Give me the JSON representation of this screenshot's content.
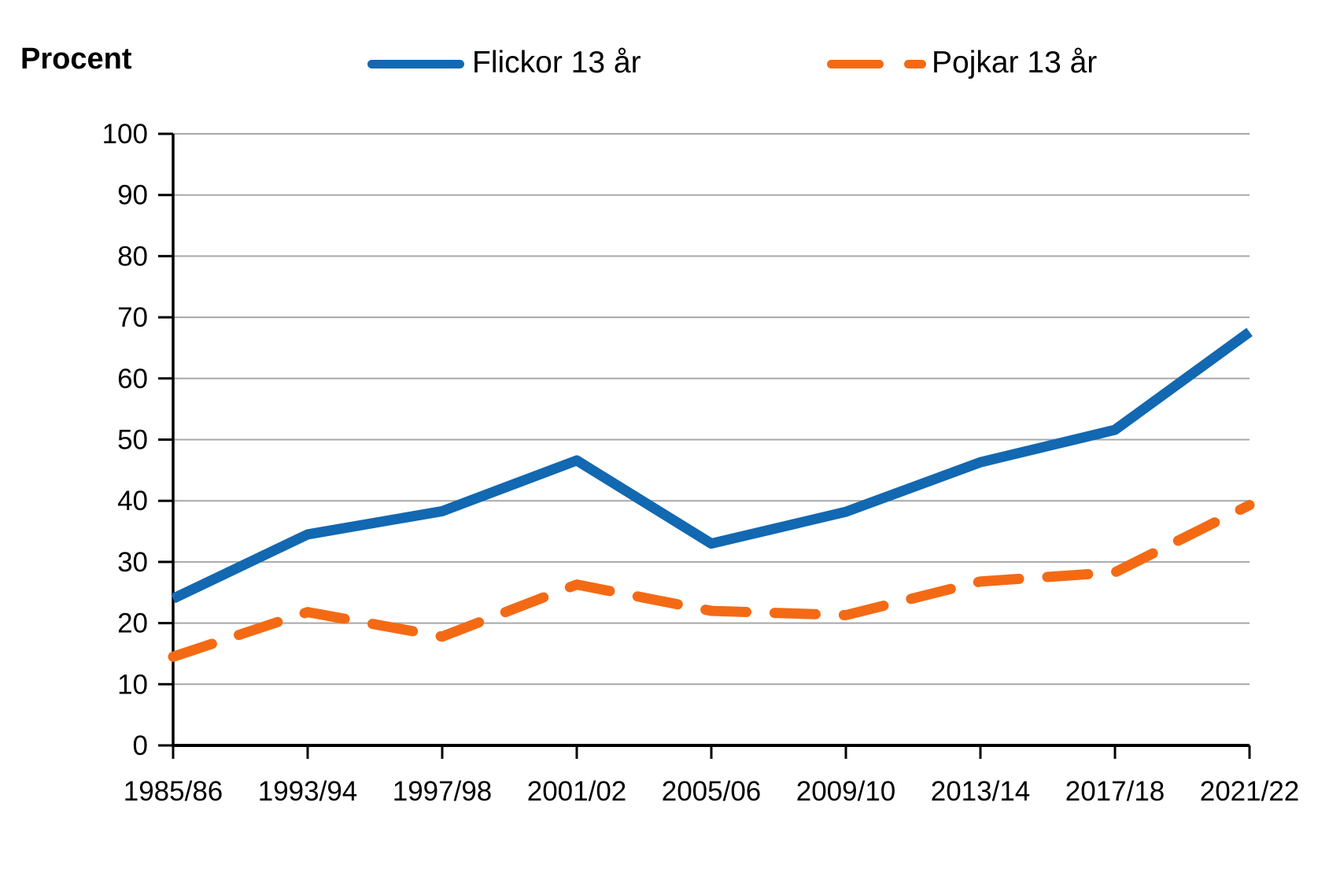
{
  "header": {
    "y_axis_title": "Procent"
  },
  "legend": {
    "items": [
      {
        "label": "Flickor 13 år",
        "color": "#1268b1",
        "style": "solid"
      },
      {
        "label": "Pojkar 13 år",
        "color": "#f46a14",
        "style": "dashed"
      }
    ]
  },
  "colors": {
    "series_girls": "#1268b1",
    "series_boys": "#f46a14",
    "gridline": "#a8a8a8",
    "axis": "#000000",
    "text": "#000000",
    "background": "#ffffff"
  },
  "chart_data": {
    "type": "line",
    "title": "Procent",
    "categories": [
      "1985/86",
      "1993/94",
      "1997/98",
      "2001/02",
      "2005/06",
      "2009/10",
      "2013/14",
      "2017/18",
      "2021/22"
    ],
    "series": [
      {
        "name": "Flickor 13 år",
        "color": "#1268b1",
        "dash": "solid",
        "values": [
          24,
          34.5,
          38.3,
          46.6,
          33,
          38.2,
          46.3,
          51.6,
          67.6
        ]
      },
      {
        "name": "Pojkar 13 år",
        "color": "#f46a14",
        "dash": "dashed",
        "values": [
          14.5,
          21.8,
          17.8,
          26.3,
          22,
          21.3,
          26.8,
          28.3,
          39.3
        ]
      }
    ],
    "ylabel": "Procent",
    "xlabel": "",
    "ylim": [
      0,
      100
    ],
    "yticks": [
      0,
      10,
      20,
      30,
      40,
      50,
      60,
      70,
      80,
      90,
      100
    ],
    "grid": "horizontal",
    "legend_position": "top"
  }
}
